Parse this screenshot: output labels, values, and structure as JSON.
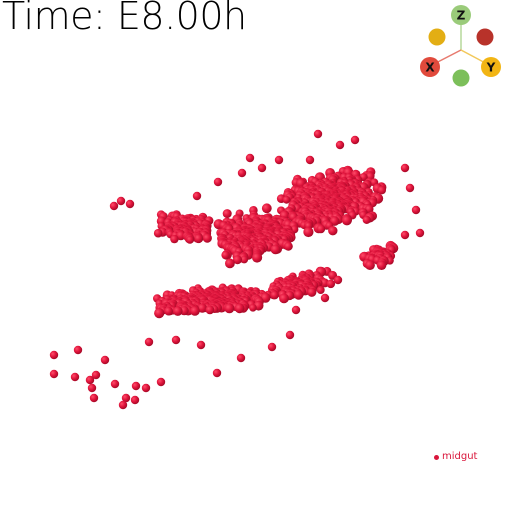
{
  "time_label": "Time: E8.00h",
  "axis_gizmo": {
    "axes": [
      {
        "label": "Z",
        "color": "#9acb7a"
      },
      {
        "label": "X",
        "color": "#e14a3c"
      },
      {
        "label": "Y",
        "color": "#f2b514"
      }
    ],
    "neg_colors": [
      "#e3ae14",
      "#b8322a",
      "#7cbf5a"
    ]
  },
  "legend": {
    "entries": [
      {
        "label": "midgut",
        "color": "#d9163b"
      }
    ]
  },
  "point_cloud": {
    "color": "#e0143c",
    "tissue": "midgut"
  }
}
